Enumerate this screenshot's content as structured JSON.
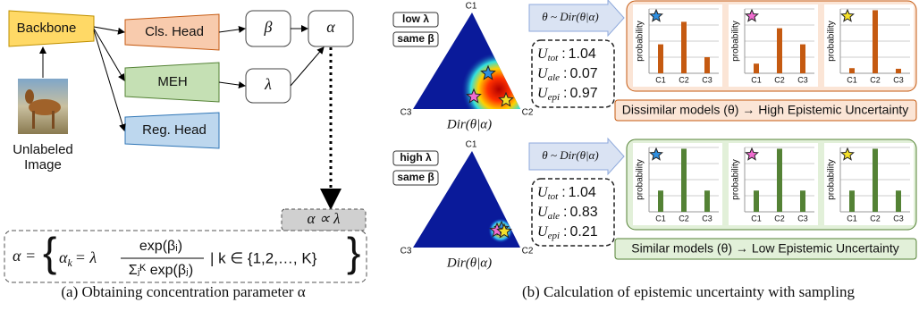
{
  "left": {
    "backbone": "Backbone",
    "cls_head": "Cls. Head",
    "meh": "MEH",
    "reg_head": "Reg. Head",
    "beta": "β",
    "lambda": "λ",
    "alpha": "α",
    "image_label": [
      "Unlabeled",
      "Image"
    ],
    "proportional": "α ∝ λ",
    "formula": {
      "lhs": "α =",
      "brace_open": "{",
      "alpha_k": "α",
      "k": "k",
      "eq_lambda": "= λ",
      "numerator": "exp(βᵢ)",
      "denominator": "Σⱼᴷ exp(βⱼ)",
      "condition": "| k ∈ {1,2,…, K}",
      "brace_close": "}"
    },
    "caption": "(a) Obtaining concentration parameter α"
  },
  "right": {
    "rows": [
      {
        "lambda_tag": "low λ",
        "beta_tag": "same β",
        "corners": [
          "C1",
          "C2",
          "C3"
        ],
        "dirichlet": "Dir(θ|α)",
        "sample": "θ ~ Dir(θ|α)",
        "separator": ":",
        "uncertainty": [
          {
            "symbol": "U",
            "sub": "tot",
            "value": 1.04
          },
          {
            "symbol": "U",
            "sub": "ale",
            "value": 0.07
          },
          {
            "symbol": "U",
            "sub": "epi",
            "value": 0.97
          }
        ],
        "y_label": "probability",
        "categories": [
          "C1",
          "C2",
          "C3"
        ],
        "bar_color": "#c55a11",
        "charts": [
          {
            "values": [
              0.45,
              0.8,
              0.25
            ]
          },
          {
            "values": [
              0.15,
              0.7,
              0.45
            ]
          },
          {
            "values": [
              0.08,
              0.98,
              0.07
            ]
          }
        ],
        "conclusion": "Dissimilar models (θ) → High Epistemic Uncertainty"
      },
      {
        "lambda_tag": "high λ",
        "beta_tag": "same β",
        "corners": [
          "C1",
          "C2",
          "C3"
        ],
        "dirichlet": "Dir(θ|α)",
        "sample": "θ ~ Dir(θ|α)",
        "separator": ":",
        "uncertainty": [
          {
            "symbol": "U",
            "sub": "tot",
            "value": 1.04
          },
          {
            "symbol": "U",
            "sub": "ale",
            "value": 0.83
          },
          {
            "symbol": "U",
            "sub": "epi",
            "value": 0.21
          }
        ],
        "y_label": "probability",
        "categories": [
          "C1",
          "C2",
          "C3"
        ],
        "bar_color": "#548235",
        "charts": [
          {
            "values": [
              0.33,
              0.98,
              0.33
            ]
          },
          {
            "values": [
              0.33,
              0.98,
              0.33
            ]
          },
          {
            "values": [
              0.33,
              0.98,
              0.33
            ]
          }
        ],
        "conclusion": "Similar models (θ) → Low Epistemic Uncertainty"
      }
    ],
    "caption": "(b) Calculation of epistemic uncertainty with sampling"
  }
}
